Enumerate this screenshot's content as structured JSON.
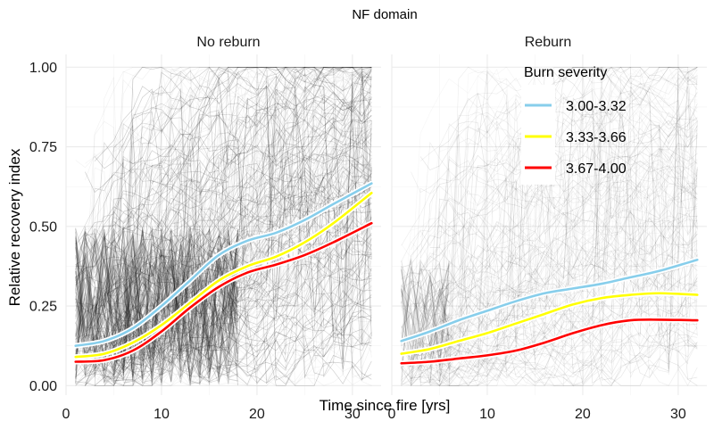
{
  "chart_data": {
    "type": "line",
    "title": "NF domain",
    "xlabel": "Time since fire [yrs]",
    "ylabel": "Relative recovery index",
    "xlim": [
      0,
      33
    ],
    "ylim": [
      -0.03,
      1.04
    ],
    "x_ticks": [
      0,
      10,
      20,
      30
    ],
    "y_ticks": [
      0.0,
      0.25,
      0.5,
      0.75,
      1.0
    ],
    "y_tick_labels": [
      "0.00",
      "0.25",
      "0.50",
      "0.75",
      "1.00"
    ],
    "grid": true,
    "legend": {
      "title": "Burn severity",
      "placement": "top-right, inside Reburn panel",
      "entries": [
        {
          "label": "3.00-3.32",
          "color": "#87ceeb"
        },
        {
          "label": "3.33-3.66",
          "color": "#ffff00"
        },
        {
          "label": "3.67-4.00",
          "color": "#ff0000"
        }
      ]
    },
    "background_trajectories": {
      "color": "#000000",
      "description": "many semi-transparent individual pixel recovery trajectories"
    },
    "panels": [
      {
        "strip_label": "No reburn",
        "x": [
          1,
          4,
          7,
          10,
          13,
          16,
          19,
          22,
          25,
          28,
          32
        ],
        "series": [
          {
            "name": "3.00-3.32",
            "color": "#87ceeb",
            "values": [
              0.125,
              0.14,
              0.18,
              0.25,
              0.33,
              0.41,
              0.455,
              0.48,
              0.52,
              0.57,
              0.635
            ]
          },
          {
            "name": "3.33-3.66",
            "color": "#ffff00",
            "values": [
              0.09,
              0.1,
              0.135,
              0.19,
              0.26,
              0.33,
              0.375,
              0.405,
              0.45,
              0.51,
              0.605
            ]
          },
          {
            "name": "3.67-4.00",
            "color": "#ff0000",
            "values": [
              0.075,
              0.08,
              0.11,
              0.17,
              0.245,
              0.31,
              0.355,
              0.38,
              0.41,
              0.45,
              0.51
            ]
          }
        ]
      },
      {
        "strip_label": "Reburn",
        "x": [
          1,
          4,
          7,
          10,
          13,
          16,
          19,
          22,
          25,
          28,
          32
        ],
        "series": [
          {
            "name": "3.00-3.32",
            "color": "#87ceeb",
            "values": [
              0.14,
              0.17,
              0.205,
              0.235,
              0.265,
              0.29,
              0.305,
              0.32,
              0.34,
              0.36,
              0.395
            ]
          },
          {
            "name": "3.33-3.66",
            "color": "#ffff00",
            "values": [
              0.1,
              0.115,
              0.14,
              0.165,
              0.195,
              0.225,
              0.255,
              0.275,
              0.285,
              0.29,
              0.285
            ]
          },
          {
            "name": "3.67-4.00",
            "color": "#ff0000",
            "values": [
              0.07,
              0.075,
              0.085,
              0.095,
              0.11,
              0.135,
              0.165,
              0.19,
              0.205,
              0.207,
              0.205
            ]
          }
        ]
      }
    ]
  }
}
